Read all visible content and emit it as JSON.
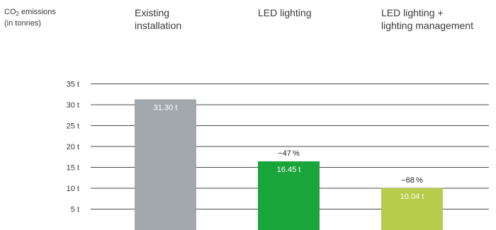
{
  "chart_data": {
    "type": "bar",
    "ylabel_main": "CO",
    "ylabel_sub": "2",
    "ylabel_rest": " emissions",
    "ylabel_line2": "(in tonnes)",
    "categories": [
      "Existing installation",
      "LED lighting",
      "LED lighting + lighting management"
    ],
    "category_headers": [
      [
        "Existing",
        "installation"
      ],
      [
        "LED lighting"
      ],
      [
        "LED lighting +",
        "lighting management"
      ]
    ],
    "values": [
      31.3,
      16.45,
      10.04
    ],
    "value_labels": [
      "31.30 t",
      "16.45 t",
      "10.04 t"
    ],
    "change_labels": [
      "",
      "−47 %",
      "−68 %"
    ],
    "bar_colors": [
      "#a2a9ae",
      "#1aa53a",
      "#b6cc4a"
    ],
    "yticks": [
      5,
      10,
      15,
      20,
      25,
      30,
      35
    ],
    "ytick_labels": [
      "5 t",
      "10 t",
      "15 t",
      "20 t",
      "25 t",
      "30 t",
      "35 t"
    ],
    "ylim": [
      0,
      35
    ],
    "grid": true
  }
}
